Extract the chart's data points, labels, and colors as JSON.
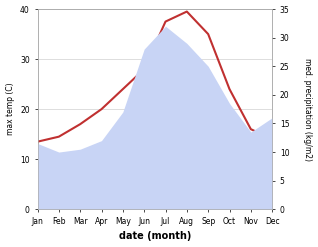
{
  "months": [
    "Jan",
    "Feb",
    "Mar",
    "Apr",
    "May",
    "Jun",
    "Jul",
    "Aug",
    "Sep",
    "Oct",
    "Nov",
    "Dec"
  ],
  "month_x": [
    0,
    1,
    2,
    3,
    4,
    5,
    6,
    7,
    8,
    9,
    10,
    11
  ],
  "temp_max": [
    13.5,
    14.5,
    17.0,
    20.0,
    24.0,
    28.0,
    37.5,
    39.5,
    35.0,
    24.0,
    16.0,
    14.0
  ],
  "precip": [
    11.5,
    10.0,
    10.5,
    12.0,
    17.0,
    28.0,
    32.0,
    29.0,
    25.0,
    18.5,
    13.5,
    16.0
  ],
  "temp_color": "#c03030",
  "precip_fill_color": "#c8d4f5",
  "temp_ylim": [
    0,
    40
  ],
  "precip_ylim": [
    0,
    35
  ],
  "temp_yticks": [
    0,
    10,
    20,
    30,
    40
  ],
  "precip_yticks": [
    0,
    5,
    10,
    15,
    20,
    25,
    30,
    35
  ],
  "temp_ylabel": "max temp (C)",
  "precip_ylabel": "med. precipitation (kg/m2)",
  "xlabel": "date (month)",
  "background_color": "#ffffff",
  "grid_color": "#d0d0d0",
  "spine_color": "#aaaaaa",
  "figsize": [
    3.18,
    2.47
  ],
  "dpi": 100
}
